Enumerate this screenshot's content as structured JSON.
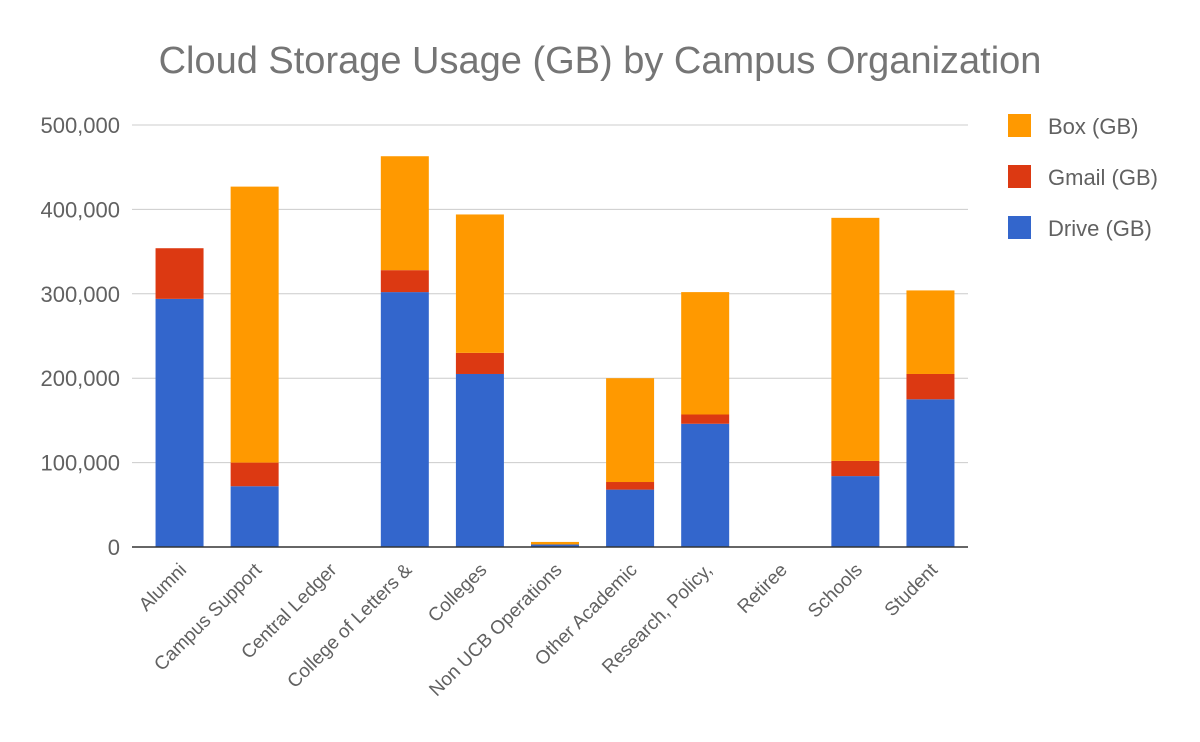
{
  "chart_data": {
    "type": "bar",
    "stacked": true,
    "title": "Cloud Storage Usage (GB) by Campus Organization",
    "xlabel": "",
    "ylabel": "",
    "ylim": [
      0,
      500000
    ],
    "yticks": [
      0,
      100000,
      200000,
      300000,
      400000,
      500000
    ],
    "ytick_labels": [
      "0",
      "100,000",
      "200,000",
      "300,000",
      "400,000",
      "500,000"
    ],
    "grid": true,
    "legend_position": "right",
    "categories": [
      "Alumni",
      "Campus Support",
      "Central Ledger",
      "College of Letters &",
      "Colleges",
      "Non UCB Operations",
      "Other Academic",
      "Research, Policy,",
      "Retiree",
      "Schools",
      "Student"
    ],
    "series": [
      {
        "name": "Drive (GB)",
        "color": "#3366cc",
        "values": [
          294000,
          72000,
          0,
          302000,
          205000,
          3000,
          68000,
          146000,
          0,
          84000,
          175000
        ]
      },
      {
        "name": "Gmail (GB)",
        "color": "#dc3912",
        "values": [
          60000,
          28000,
          0,
          26000,
          25000,
          0,
          9000,
          11000,
          0,
          18000,
          30000
        ]
      },
      {
        "name": "Box (GB)",
        "color": "#ff9900",
        "values": [
          0,
          327000,
          0,
          135000,
          164000,
          3000,
          123000,
          145000,
          0,
          288000,
          99000
        ]
      }
    ],
    "legend_order": [
      "Box (GB)",
      "Gmail (GB)",
      "Drive (GB)"
    ]
  }
}
